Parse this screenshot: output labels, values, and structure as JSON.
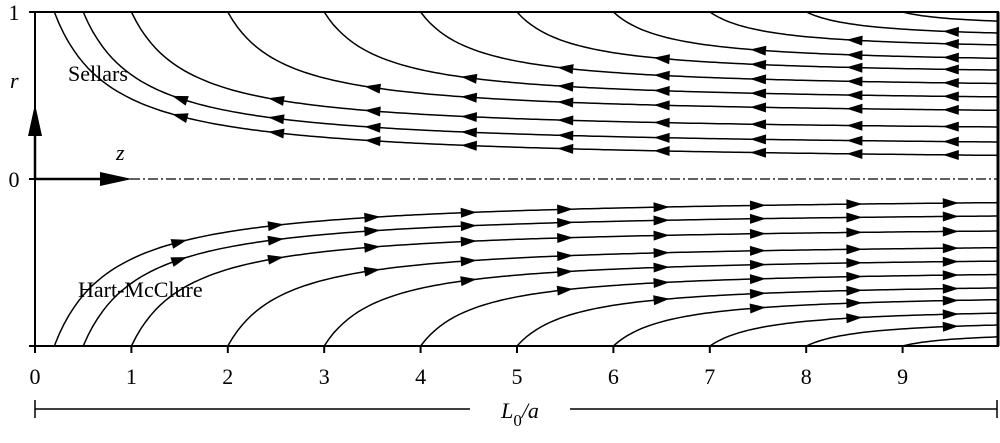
{
  "axes": {
    "r_label": "r",
    "z_label": "z",
    "r_ticks": [
      "1",
      "0"
    ],
    "x_ticks": [
      0,
      1,
      2,
      3,
      4,
      5,
      6,
      7,
      8,
      9
    ],
    "x_label": {
      "main": "L",
      "sub": "0",
      "rest": "/a"
    }
  },
  "annotations": {
    "upper": "Sellars",
    "lower": "Hart-McClure"
  }
}
